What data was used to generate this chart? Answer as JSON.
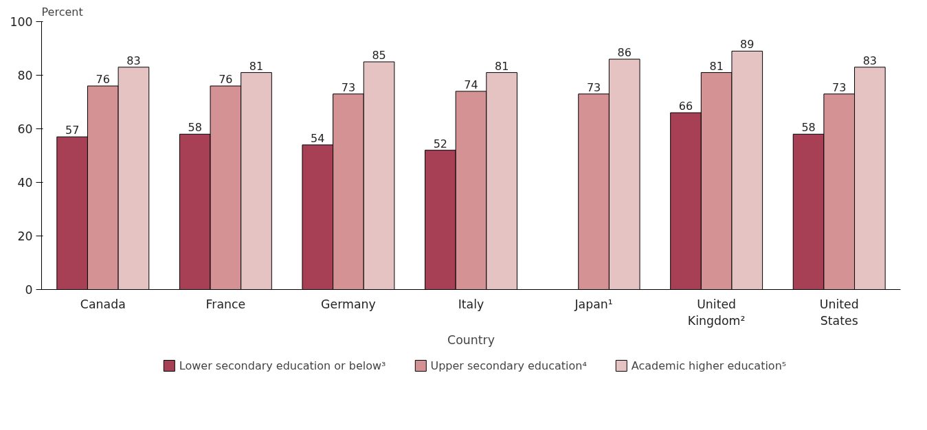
{
  "chart_data": {
    "type": "bar",
    "ylabel": "Percent",
    "xlabel": "Country",
    "categories": [
      "Canada",
      "France",
      "Germany",
      "Italy",
      "Japan¹",
      "United Kingdom²",
      "United States"
    ],
    "series": [
      {
        "name": "Lower secondary education or below³",
        "color": "#a84055",
        "values": [
          57,
          58,
          54,
          52,
          null,
          66,
          58
        ]
      },
      {
        "name": "Upper secondary education⁴",
        "color": "#d49294",
        "values": [
          76,
          76,
          73,
          74,
          73,
          81,
          73
        ]
      },
      {
        "name": "Academic higher education⁵",
        "color": "#e6c3c3",
        "values": [
          83,
          81,
          85,
          81,
          86,
          89,
          83
        ]
      }
    ],
    "ylim": [
      0,
      100
    ],
    "yticks": [
      0,
      20,
      40,
      60,
      80,
      100
    ],
    "data_labels": true,
    "grid": false,
    "legend": "bottom"
  }
}
